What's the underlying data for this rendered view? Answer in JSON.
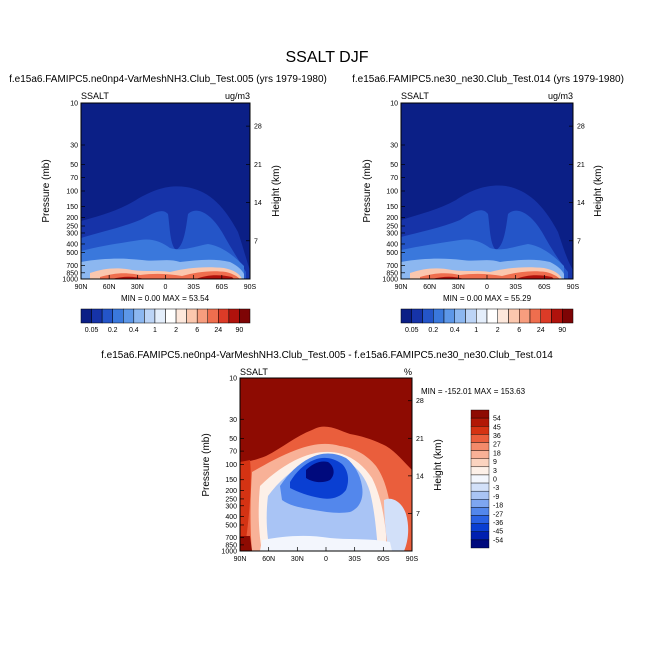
{
  "figure_title": "SSALT DJF",
  "colors": {
    "seq": [
      "#0b1f86",
      "#1633a8",
      "#2455c8",
      "#3a78dc",
      "#5d97e8",
      "#8cb7f0",
      "#bcd4f6",
      "#e4eefb",
      "#ffffff",
      "#fde8dc",
      "#fbc7ae",
      "#f79d7e",
      "#ef6e4e",
      "#dc3b27",
      "#b0120c",
      "#7e0405"
    ],
    "diff": [
      "#000a7d",
      "#0020b0",
      "#0a3fd2",
      "#2a62e4",
      "#5387ec",
      "#7ea6f1",
      "#a9c4f5",
      "#d2e0f9",
      "#f3f6fd",
      "#fdf0e8",
      "#fbd3bf",
      "#f8b197",
      "#f38a6a",
      "#ea5e3c",
      "#d53313",
      "#b21806",
      "#8e0b02"
    ]
  },
  "chart_data": [
    {
      "type": "heatmap",
      "title": "f.e15a6.FAMIPC5.ne0np4-VarMeshNH3.Club_Test.005 (yrs 1979-1980)",
      "left_label": "SSALT",
      "right_label": "ug/m3",
      "ylabel": "Pressure (mb)",
      "ylabel_right": "Height (km)",
      "x_ticks": [
        "90N",
        "60N",
        "30N",
        "0",
        "30S",
        "60S",
        "90S"
      ],
      "y_ticks": [
        "10",
        "30",
        "50",
        "70",
        "100",
        "150",
        "200",
        "250",
        "300",
        "400",
        "500",
        "700",
        "850",
        "1000"
      ],
      "height_ticks": [
        "28",
        "21",
        "14",
        "7"
      ],
      "min_max": "MIN =   0.00  MAX =  53.54",
      "colorbar_labels": [
        "0.05",
        "0.2",
        "0.4",
        "1",
        "2",
        "6",
        "24",
        "90"
      ]
    },
    {
      "type": "heatmap",
      "title": "f.e15a6.FAMIPC5.ne30_ne30.Club_Test.014 (yrs 1979-1980)",
      "left_label": "SSALT",
      "right_label": "ug/m3",
      "ylabel": "Pressure (mb)",
      "ylabel_right": "Height (km)",
      "x_ticks": [
        "90N",
        "60N",
        "30N",
        "0",
        "30S",
        "60S",
        "90S"
      ],
      "y_ticks": [
        "10",
        "30",
        "50",
        "70",
        "100",
        "150",
        "200",
        "250",
        "300",
        "400",
        "500",
        "700",
        "850",
        "1000"
      ],
      "height_ticks": [
        "28",
        "21",
        "14",
        "7"
      ],
      "min_max": "MIN =   0.00  MAX =  55.29",
      "colorbar_labels": [
        "0.05",
        "0.2",
        "0.4",
        "1",
        "2",
        "6",
        "24",
        "90"
      ]
    },
    {
      "type": "heatmap",
      "title": "f.e15a6.FAMIPC5.ne0np4-VarMeshNH3.Club_Test.005 - f.e15a6.FAMIPC5.ne30_ne30.Club_Test.014",
      "left_label": "SSALT",
      "right_label": "%",
      "ylabel": "Pressure (mb)",
      "ylabel_right": "Height (km)",
      "x_ticks": [
        "90N",
        "60N",
        "30N",
        "0",
        "30S",
        "60S",
        "90S"
      ],
      "y_ticks": [
        "10",
        "30",
        "50",
        "70",
        "100",
        "150",
        "200",
        "250",
        "300",
        "400",
        "500",
        "700",
        "850",
        "1000"
      ],
      "height_ticks": [
        "28",
        "21",
        "14",
        "7"
      ],
      "min_max": "MIN = -152.01  MAX = 153.63",
      "colorbar_labels": [
        "54",
        "45",
        "36",
        "27",
        "18",
        "9",
        "3",
        "0",
        "-3",
        "-9",
        "-18",
        "-27",
        "-36",
        "-45",
        "-54"
      ]
    }
  ]
}
